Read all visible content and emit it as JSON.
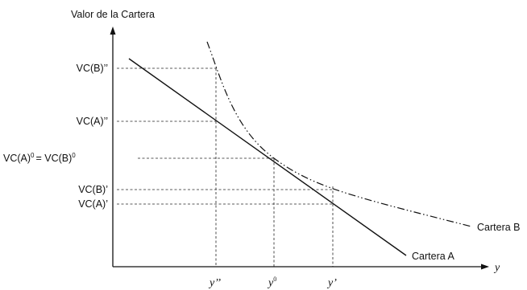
{
  "diagram": {
    "y_axis_title": "Valor de la Cartera",
    "x_axis_title": "y",
    "y_labels": {
      "vc_b_dblprime": "VC(B)’’",
      "vc_a_dblprime": "VC(A)’’",
      "vc_a0": "VC(A)",
      "vc_b0": "= VC(B)",
      "zero_superscript": "0",
      "vc_b_prime": "VC(B)’",
      "vc_a_prime": "VC(A)’"
    },
    "x_labels": {
      "y_dblprime": "y’’",
      "y0": "y",
      "y0_superscript": "0",
      "y_prime": "y’"
    },
    "series_labels": {
      "cartera_a": "Cartera A",
      "cartera_b": "Cartera B"
    }
  }
}
